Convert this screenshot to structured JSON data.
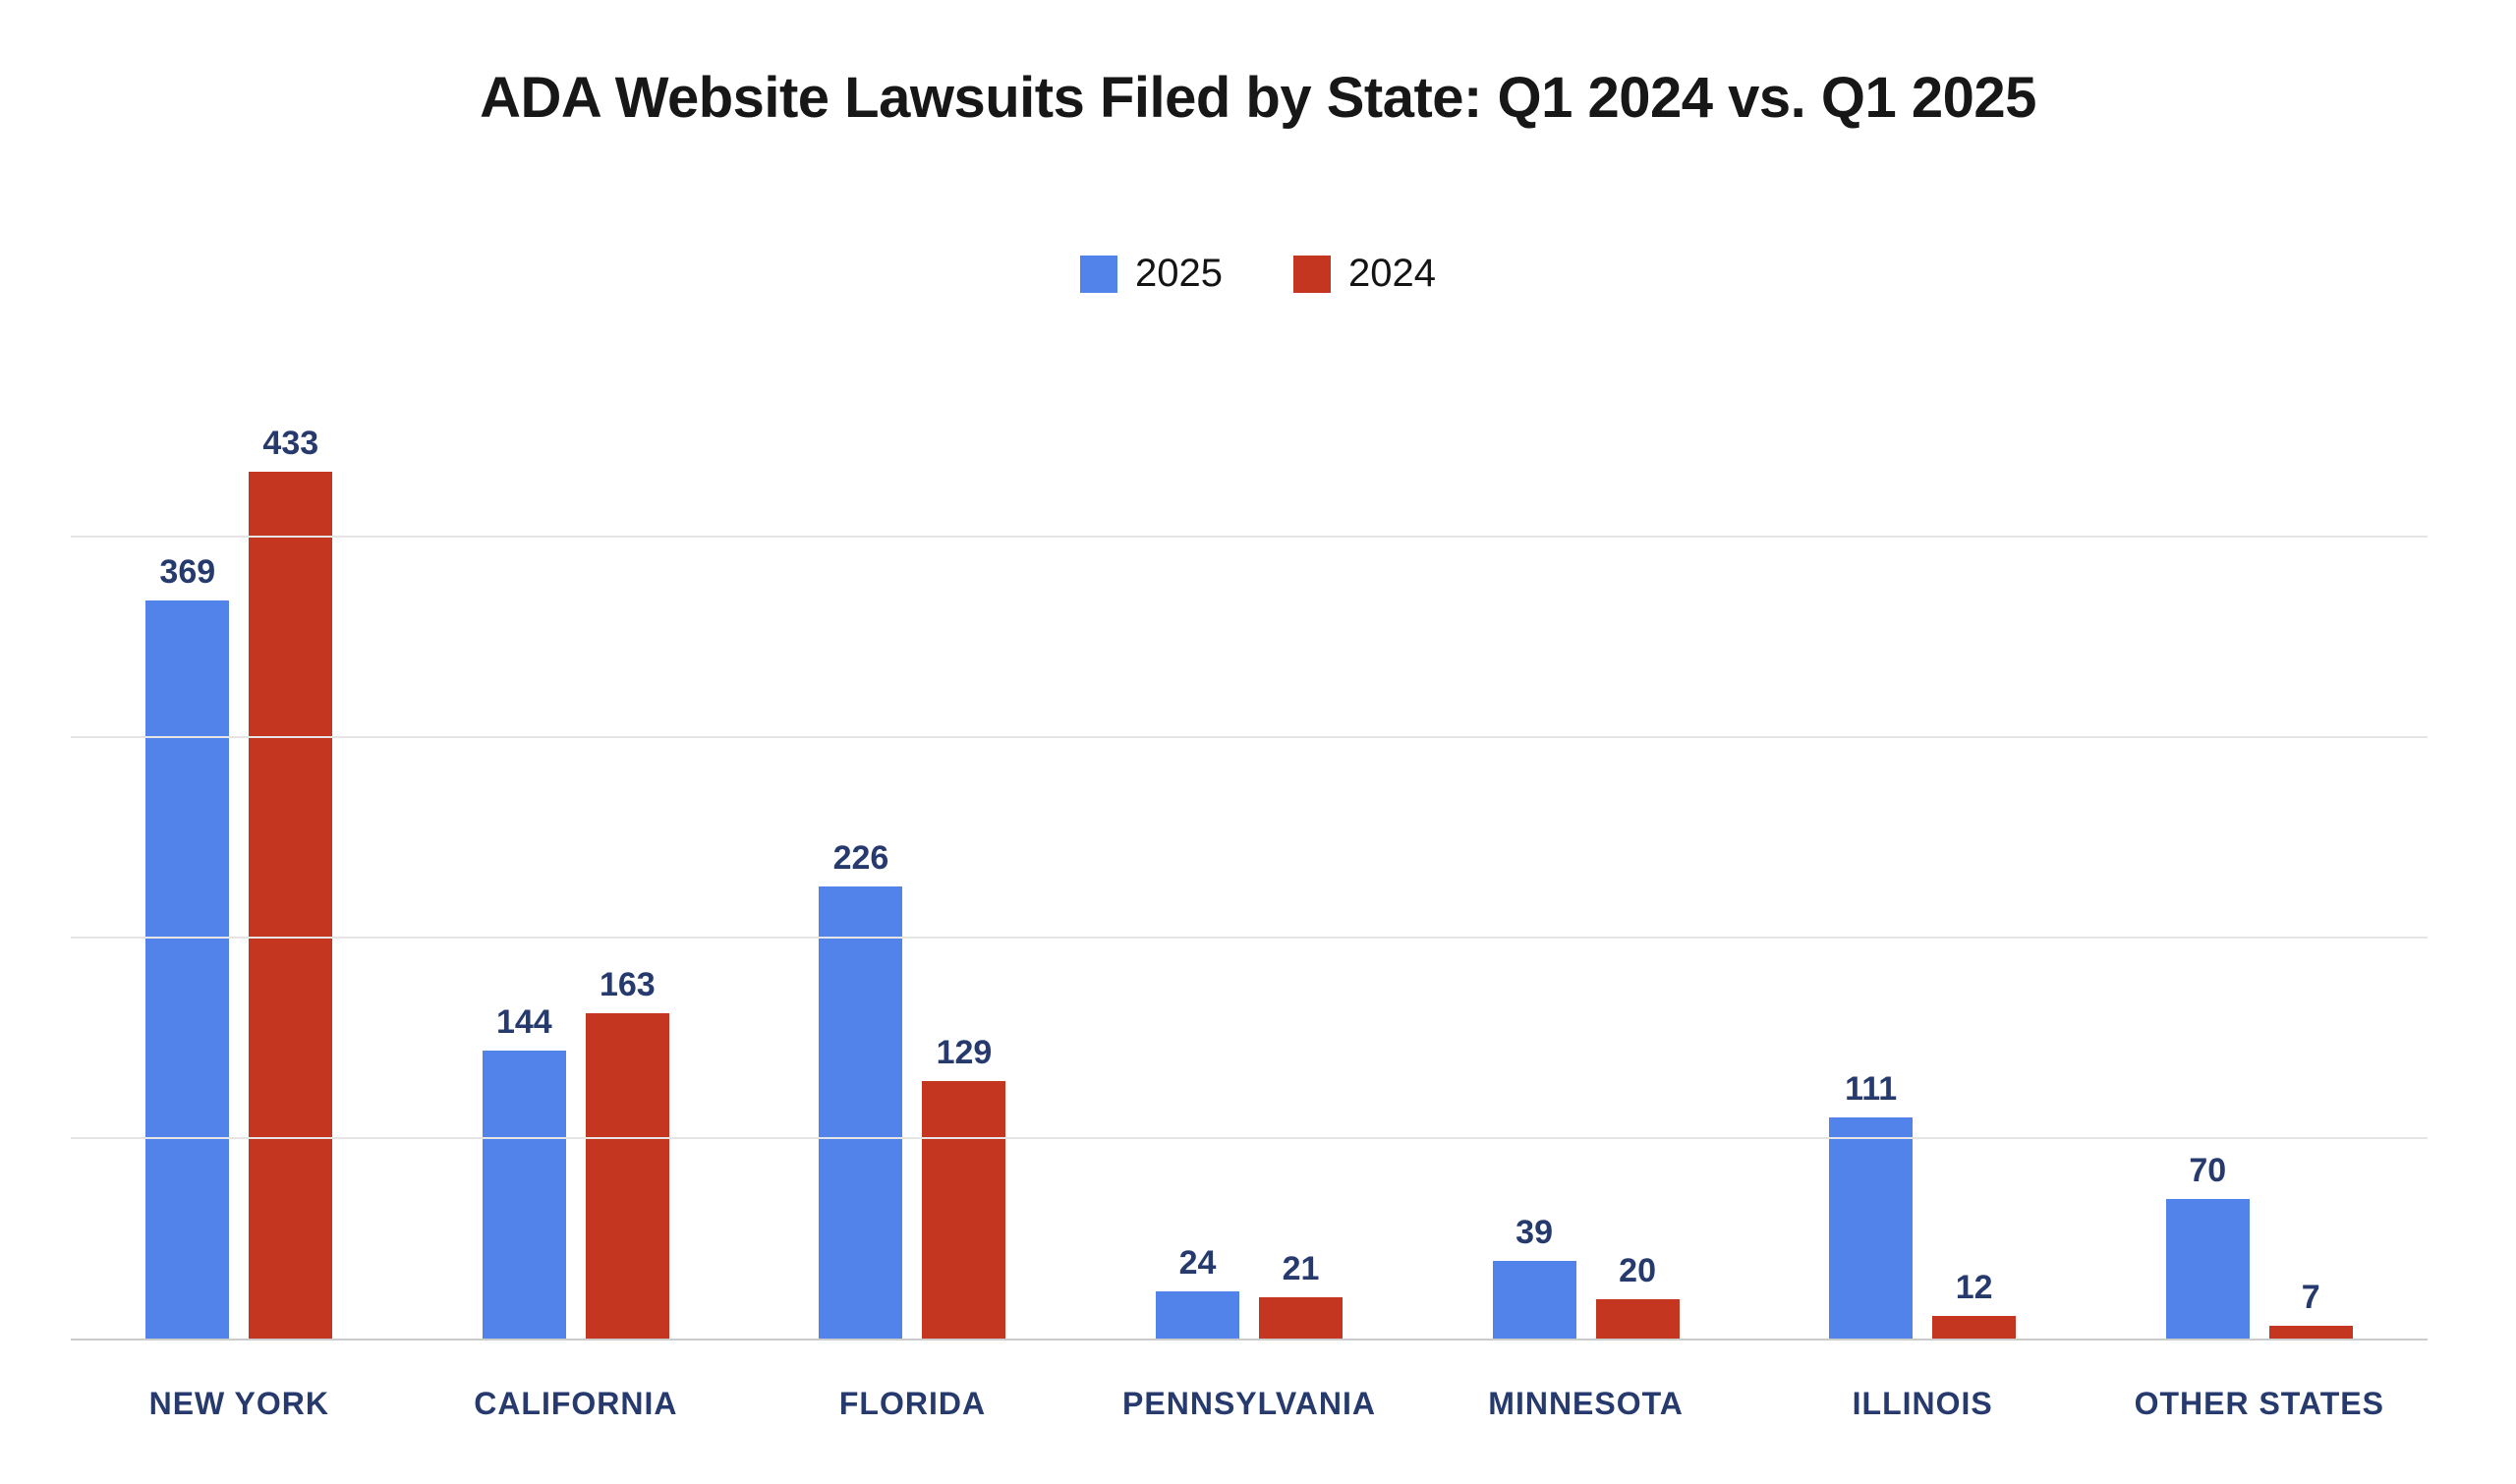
{
  "title": "ADA Website Lawsuits Filed by State: Q1 2024 vs. Q1 2025",
  "legend": {
    "items": [
      {
        "label": "2025",
        "color": "#5283EA"
      },
      {
        "label": "2024",
        "color": "#C43620"
      }
    ]
  },
  "chart_data": {
    "type": "bar",
    "title": "ADA Website Lawsuits Filed by State: Q1 2024 vs. Q1 2025",
    "categories": [
      "NEW YORK",
      "CALIFORNIA",
      "FLORIDA",
      "PENNSYLVANIA",
      "MINNESOTA",
      "ILLINOIS",
      "OTHER STATES"
    ],
    "series": [
      {
        "name": "2025",
        "color": "#5283EA",
        "values": [
          369,
          144,
          226,
          24,
          39,
          111,
          70
        ]
      },
      {
        "name": "2024",
        "color": "#C43620",
        "values": [
          433,
          163,
          129,
          21,
          20,
          12,
          7
        ]
      }
    ],
    "ylim": [
      0,
      440
    ],
    "gridline_values": [
      100,
      200,
      300,
      400
    ],
    "grid": true,
    "y_tick_labels_visible": false,
    "legend_position": "top-center",
    "value_labels": true,
    "value_label_color": "#263A6E",
    "axis_label_color": "#263A6E",
    "gridline_color": "#E5E5E5",
    "baseline_color": "#CBCBCB"
  }
}
